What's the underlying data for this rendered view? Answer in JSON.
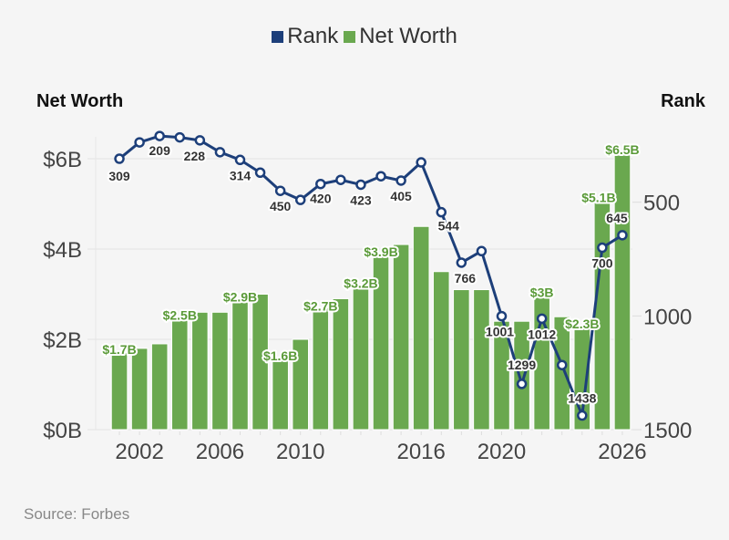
{
  "chart_data": {
    "type": "bar+line",
    "legend": [
      {
        "name": "Rank",
        "color": "#1d3f7a"
      },
      {
        "name": "Net Worth",
        "color": "#6aa84f"
      }
    ],
    "legend_position": "top-center",
    "y_left_title": "Net Worth",
    "y_right_title": "Rank",
    "x": [
      2001,
      2002,
      2003,
      2004,
      2005,
      2006,
      2007,
      2008,
      2009,
      2010,
      2011,
      2012,
      2013,
      2014,
      2015,
      2016,
      2017,
      2018,
      2019,
      2020,
      2021,
      2022,
      2023,
      2024,
      2025,
      2026
    ],
    "x_tick_labels": [
      "2002",
      "2006",
      "2010",
      "2016",
      "2020",
      "2026"
    ],
    "y_left_ticks": [
      "$0B",
      "$2B",
      "$4B",
      "$6B"
    ],
    "y_left_tick_values": [
      0,
      2,
      4,
      6
    ],
    "y_left_range": [
      0,
      6
    ],
    "y_right_ticks": [
      "500",
      "1000",
      "1500"
    ],
    "y_right_tick_values": [
      500,
      1000,
      1500
    ],
    "y_right_range": [
      0,
      1500
    ],
    "y_right_inverted": true,
    "series": [
      {
        "name": "Net Worth",
        "type": "bar",
        "unit": "USD billions",
        "color": "#6aa84f",
        "values": [
          1.7,
          1.8,
          1.9,
          2.5,
          2.6,
          2.6,
          2.9,
          3.0,
          1.6,
          2.0,
          2.7,
          2.9,
          3.2,
          3.9,
          4.1,
          4.5,
          3.5,
          3.1,
          3.1,
          2.4,
          2.4,
          3.0,
          2.5,
          2.3,
          5.1,
          6.5
        ],
        "data_labels": {
          "2001": "$1.7B",
          "2004": "$2.5B",
          "2007": "$2.9B",
          "2009": "$1.6B",
          "2011": "$2.7B",
          "2013": "$3.2B",
          "2014": "$3.9B",
          "2022": "$3B",
          "2024": "$2.3B",
          "2025": "$5.1B",
          "2026": "$6.5B"
        }
      },
      {
        "name": "Rank",
        "type": "line",
        "color": "#1d3f7a",
        "values": [
          309,
          237,
          209,
          215,
          228,
          280,
          314,
          370,
          450,
          490,
          420,
          402,
          423,
          386,
          405,
          325,
          544,
          766,
          715,
          1001,
          1299,
          1012,
          1216,
          1438,
          700,
          645
        ],
        "data_labels": {
          "2001": "309",
          "2003": "209",
          "2005": "228",
          "2007": "314",
          "2009": "450",
          "2011": "420",
          "2013": "423",
          "2015": "405",
          "2017": "544",
          "2018": "766",
          "2020": "1001",
          "2021": "1299",
          "2022": "1012",
          "2024": "1438",
          "2025": "700",
          "2026": "645"
        }
      }
    ],
    "grid": true,
    "source": "Source: Forbes"
  }
}
